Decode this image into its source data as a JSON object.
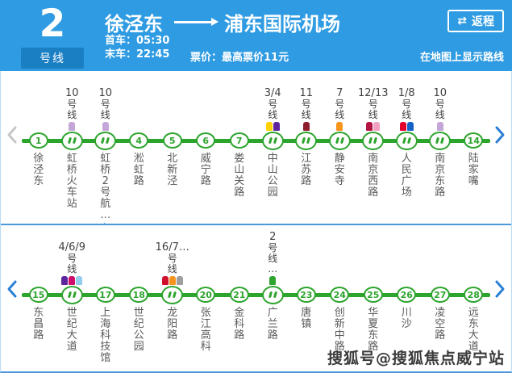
{
  "header": {
    "line_number": "2",
    "line_suffix": "号线",
    "origin": "徐泾东",
    "destination": "浦东国际机场",
    "first_train": "首车：05:30",
    "last_train": "末车：22:45",
    "fare": "票价：最高票价11元",
    "map_link": "在地图上显示路线",
    "return_icon": "⇄",
    "return_label": "返程"
  },
  "colors": {
    "header_blue": "#2E9BE2",
    "badge_blue": "#1B7FC4",
    "line_green": "#2DA42D",
    "divider_blue": "#4E97DB",
    "arrow_blue": "#2B7FD4",
    "arrow_gray": "#C6C6C6"
  },
  "panels": [
    {
      "left_arrow_enabled": false,
      "right_arrow_enabled": true,
      "stations": [
        {
          "num": "1",
          "name": "徐泾东"
        },
        {
          "num": "2",
          "name": "虹桥火车站",
          "transfer": {
            "num": "10",
            "suffix": "号线",
            "colors": [
              "#C5A6D9"
            ]
          }
        },
        {
          "num": "3",
          "name": "虹桥2号航…",
          "airport": true,
          "transfer": {
            "num": "10",
            "suffix": "号线",
            "colors": [
              "#C5A6D9"
            ]
          }
        },
        {
          "num": "4",
          "name": "淞虹路"
        },
        {
          "num": "5",
          "name": "北新泾"
        },
        {
          "num": "6",
          "name": "威宁路"
        },
        {
          "num": "7",
          "name": "娄山关路"
        },
        {
          "num": "8",
          "name": "中山公园",
          "transfer": {
            "num": "3/4",
            "suffix": "号线",
            "colors": [
              "#FFD100",
              "#5F259F"
            ]
          }
        },
        {
          "num": "9",
          "name": "江苏路",
          "transfer": {
            "num": "11",
            "suffix": "号线",
            "colors": [
              "#8E1D2E"
            ]
          }
        },
        {
          "num": "10",
          "name": "静安寺",
          "transfer": {
            "num": "7",
            "suffix": "号线",
            "colors": [
              "#F7941E"
            ]
          }
        },
        {
          "num": "11",
          "name": "南京西路",
          "transfer": {
            "num": "12/13",
            "suffix": "号线",
            "colors": [
              "#B31342",
              "#F2A0C2"
            ]
          }
        },
        {
          "num": "12",
          "name": "人民广场",
          "transfer": {
            "num": "1/8",
            "suffix": "号线",
            "colors": [
              "#E3002C",
              "#1661C7"
            ]
          }
        },
        {
          "num": "13",
          "name": "南京东路",
          "transfer": {
            "num": "10",
            "suffix": "号线",
            "colors": [
              "#C5A6D9"
            ]
          }
        },
        {
          "num": "14",
          "name": "陆家嘴"
        }
      ]
    },
    {
      "left_arrow_enabled": true,
      "right_arrow_enabled": true,
      "stations": [
        {
          "num": "15",
          "name": "东昌路"
        },
        {
          "num": "16",
          "name": "世纪大道",
          "transfer": {
            "num": "4/6/9",
            "suffix": "号线",
            "colors": [
              "#5F259F",
              "#D10C6A",
              "#93CCEC"
            ]
          }
        },
        {
          "num": "17",
          "name": "上海科技馆"
        },
        {
          "num": "18",
          "name": "世纪公园"
        },
        {
          "num": "19",
          "name": "龙阳路",
          "transfer": {
            "num": "16/7…",
            "suffix": "号线",
            "colors": [
              "#D0112D",
              "#F7941E",
              "#9E9E9E"
            ]
          }
        },
        {
          "num": "20",
          "name": "张江高科"
        },
        {
          "num": "21",
          "name": "金科路"
        },
        {
          "num": "22",
          "name": "广兰路",
          "transfer": {
            "num": "2",
            "suffix": "号线…",
            "colors": [
              "#2DA42D"
            ]
          }
        },
        {
          "num": "23",
          "name": "唐镇"
        },
        {
          "num": "24",
          "name": "创新中路"
        },
        {
          "num": "25",
          "name": "华夏东路"
        },
        {
          "num": "26",
          "name": "川沙"
        },
        {
          "num": "27",
          "name": "凌空路"
        },
        {
          "num": "28",
          "name": "远东大道"
        }
      ]
    }
  ],
  "watermark": "搜狐号@搜狐焦点威宁站"
}
